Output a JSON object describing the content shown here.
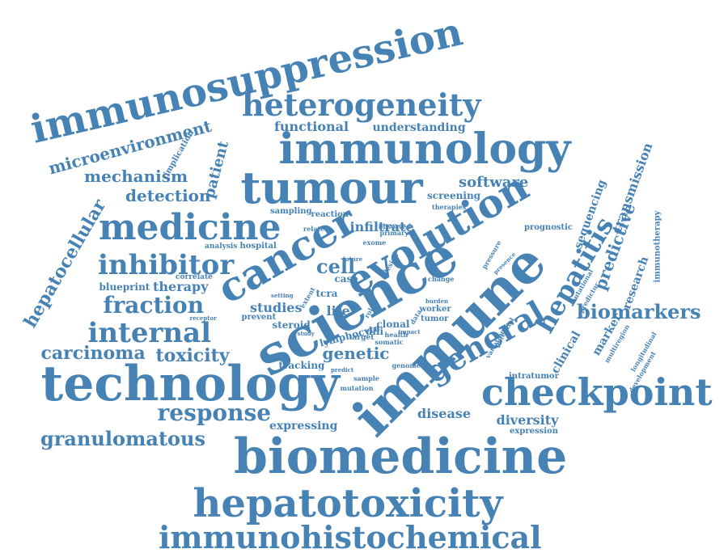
{
  "color": "#4682b4",
  "words": [
    {
      "text": "immunosuppression",
      "rot": -13
    },
    {
      "text": "immunology",
      "rot": 0
    },
    {
      "text": "tumour",
      "rot": 0
    },
    {
      "text": "heterogeneity",
      "rot": 0
    },
    {
      "text": "science",
      "rot": -30
    },
    {
      "text": "immune",
      "rot": -45
    },
    {
      "text": "cancer",
      "rot": -30
    },
    {
      "text": "evolution",
      "rot": -30
    },
    {
      "text": "medicine",
      "rot": 0
    },
    {
      "text": "technology",
      "rot": 0
    },
    {
      "text": "biomedicine",
      "rot": 0
    },
    {
      "text": "hepatotoxicity",
      "rot": 0
    },
    {
      "text": "immunohistochemical",
      "rot": 0
    },
    {
      "text": "checkpoint",
      "rot": 0
    },
    {
      "text": "general",
      "rot": -30
    },
    {
      "text": "hepatitis",
      "rot": -60
    },
    {
      "text": "inhibitor",
      "rot": 0
    },
    {
      "text": "internal",
      "rot": 0
    },
    {
      "text": "response",
      "rot": 0
    },
    {
      "text": "fraction",
      "rot": 0
    },
    {
      "text": "granulomatous",
      "rot": 0
    },
    {
      "text": "carcinoma",
      "rot": 0
    },
    {
      "text": "toxicity",
      "rot": 0
    },
    {
      "text": "biomarkers",
      "rot": 0
    },
    {
      "text": "microenvironment",
      "rot": -15
    },
    {
      "text": "mechanism",
      "rot": 0
    },
    {
      "text": "detection",
      "rot": 0
    },
    {
      "text": "hepatocellular",
      "rot": -60
    },
    {
      "text": "functional",
      "rot": 0
    },
    {
      "text": "understanding",
      "rot": 0
    },
    {
      "text": "software",
      "rot": 0
    },
    {
      "text": "screening",
      "rot": 0
    },
    {
      "text": "genetic",
      "rot": 0
    },
    {
      "text": "disease",
      "rot": 0
    },
    {
      "text": "diversity",
      "rot": 0
    },
    {
      "text": "predictive",
      "rot": -70
    },
    {
      "text": "transmission",
      "rot": -70
    },
    {
      "text": "sequencing",
      "rot": -70
    },
    {
      "text": "research",
      "rot": -70
    },
    {
      "text": "clinical",
      "rot": -60
    },
    {
      "text": "marker",
      "rot": -60
    },
    {
      "text": "cell",
      "rot": 0
    },
    {
      "text": "patient",
      "rot": -75
    },
    {
      "text": "therapy",
      "rot": 0
    },
    {
      "text": "studies",
      "rot": 0
    },
    {
      "text": "life",
      "rot": 0
    },
    {
      "text": "infiltrate",
      "rot": 0
    },
    {
      "text": "expressing",
      "rot": 0
    },
    {
      "text": "tracking",
      "rot": 0
    },
    {
      "text": "blueprint",
      "rot": 0
    },
    {
      "text": "steroid",
      "rot": 0
    },
    {
      "text": "lymphocyte",
      "rot": -15
    },
    {
      "text": "implication",
      "rot": -60
    },
    {
      "text": "prevent",
      "rot": 0
    },
    {
      "text": "hospital",
      "rot": 0
    },
    {
      "text": "reaction",
      "rot": 0
    },
    {
      "text": "sampling",
      "rot": 0
    },
    {
      "text": "therapies",
      "rot": 0
    },
    {
      "text": "observed",
      "rot": 0
    },
    {
      "text": "primary",
      "rot": 0
    },
    {
      "text": "exome",
      "rot": 0
    },
    {
      "text": "prognostic",
      "rot": 0
    },
    {
      "text": "immunotherapy",
      "rot": -90
    },
    {
      "text": "development",
      "rot": -60
    },
    {
      "text": "multiregion",
      "rot": -60
    },
    {
      "text": "longitudinal",
      "rot": -60
    },
    {
      "text": "mutational",
      "rot": -60
    },
    {
      "text": "predictor",
      "rot": -60
    },
    {
      "text": "intratumor",
      "rot": 0
    },
    {
      "text": "expression",
      "rot": 0
    },
    {
      "text": "mutation",
      "rot": 0
    },
    {
      "text": "sample",
      "rot": 0
    },
    {
      "text": "genome",
      "rot": 0
    },
    {
      "text": "tumor",
      "rot": 0
    },
    {
      "text": "clonal",
      "rot": 0
    },
    {
      "text": "worker",
      "rot": 0
    },
    {
      "text": "correlate",
      "rot": 0
    },
    {
      "text": "analysis",
      "rot": 0
    },
    {
      "text": "related",
      "rot": 0
    },
    {
      "text": "tcra",
      "rot": 0
    },
    {
      "text": "case",
      "rot": 0
    },
    {
      "text": "dili",
      "rot": 0
    },
    {
      "text": "health",
      "rot": 0
    },
    {
      "text": "somatic",
      "rot": 0
    },
    {
      "text": "target",
      "rot": 0
    },
    {
      "text": "receptor",
      "rot": 0
    },
    {
      "text": "study",
      "rot": 0
    },
    {
      "text": "predict",
      "rot": 0
    },
    {
      "text": "change",
      "rot": 0
    },
    {
      "text": "burden",
      "rot": 0
    },
    {
      "text": "pressure",
      "rot": -60
    },
    {
      "text": "presence",
      "rot": -45
    },
    {
      "text": "variation",
      "rot": -60
    },
    {
      "text": "potential",
      "rot": -60
    },
    {
      "text": "lesion",
      "rot": -60
    },
    {
      "text": "future",
      "rot": 0
    },
    {
      "text": "setting",
      "rot": 0
    },
    {
      "text": "extent",
      "rot": -60
    },
    {
      "text": "role",
      "rot": -60
    },
    {
      "text": "impact",
      "rot": 0
    },
    {
      "text": "data",
      "rot": -60
    }
  ]
}
